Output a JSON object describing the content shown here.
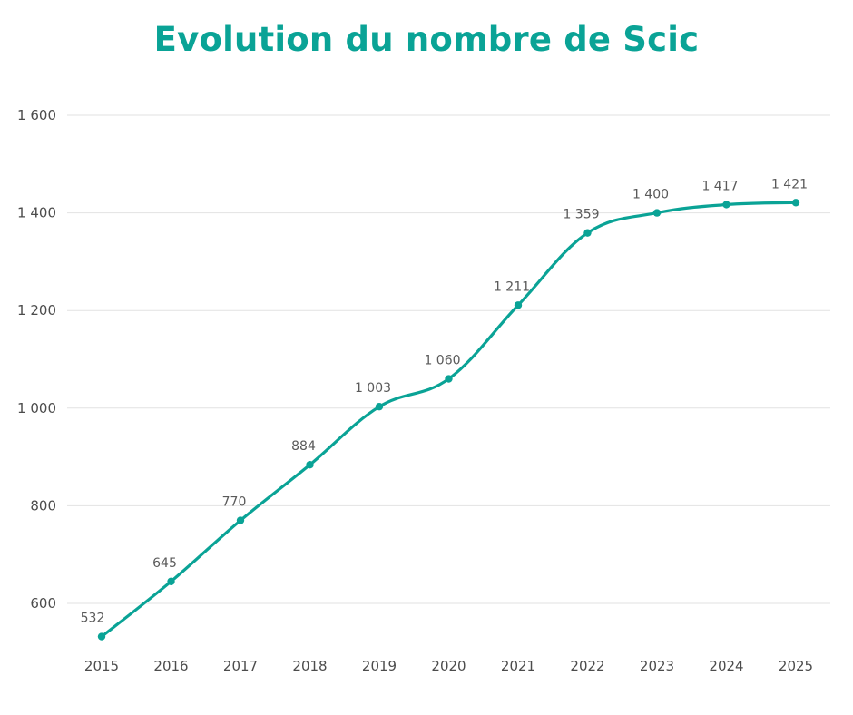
{
  "title": "Evolution du nombre de Scic",
  "colors": {
    "line": "#0aa396",
    "grid": "#e2e2e2",
    "title": "#0aa396",
    "text": "#4c4c4c"
  },
  "chart_data": {
    "type": "line",
    "title": "Evolution du nombre de Scic",
    "xlabel": "",
    "ylabel": "",
    "x": [
      "2015",
      "2016",
      "2017",
      "2018",
      "2019",
      "2020",
      "2021",
      "2022",
      "2023",
      "2024",
      "2025"
    ],
    "series": [
      {
        "values": [
          532,
          645,
          770,
          884,
          1003,
          1060,
          1211,
          1359,
          1400,
          1417,
          1421
        ],
        "labels": [
          "532",
          "645",
          "770",
          "884",
          "1 003",
          "1 060",
          "1 211",
          "1 359",
          "1 400",
          "1 417",
          "1 421"
        ]
      }
    ],
    "ylim": [
      500,
      1600
    ],
    "yticks": [
      600,
      800,
      1000,
      1200,
      1400,
      1600
    ],
    "ytick_labels": [
      "600",
      "800",
      "1 000",
      "1 200",
      "1 400",
      "1 600"
    ],
    "grid": true,
    "legend": "none",
    "smooth": true,
    "markers": true
  }
}
